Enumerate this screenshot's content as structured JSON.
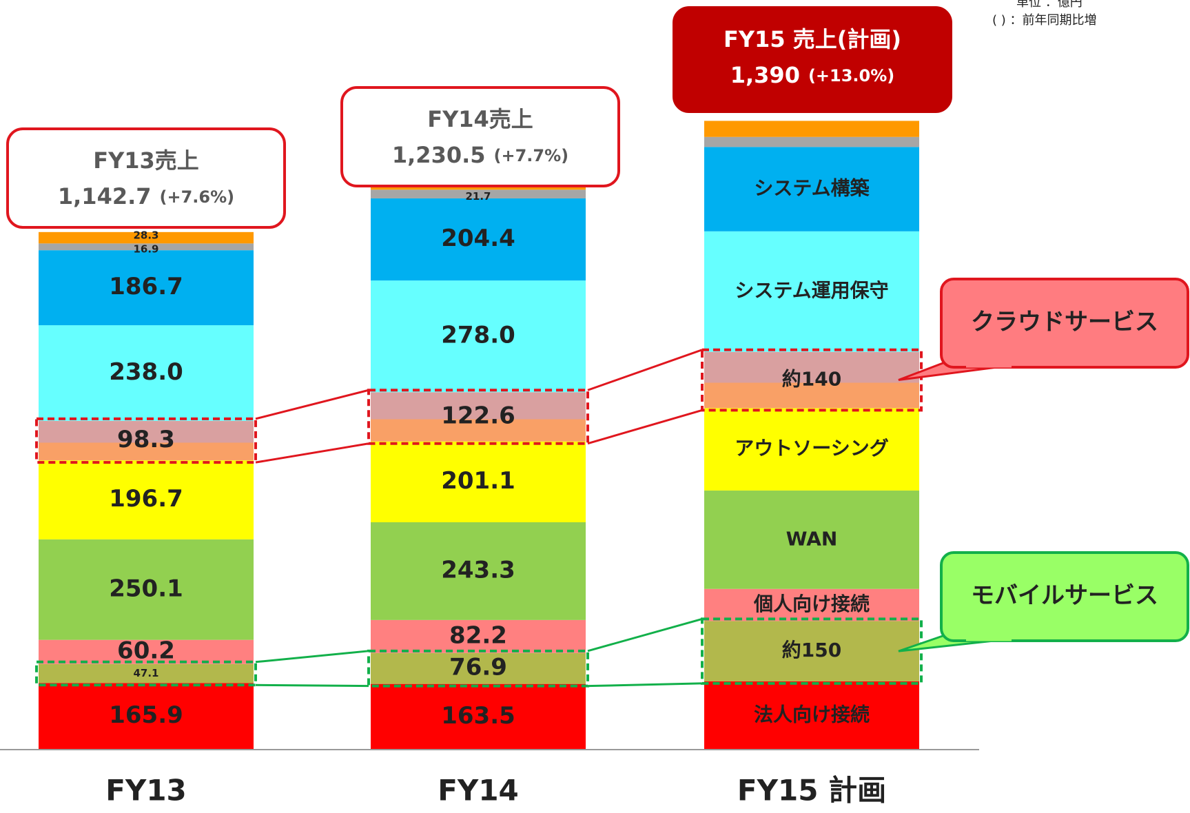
{
  "chart_data": {
    "type": "stacked-bar",
    "categories": [
      "FY13",
      "FY14",
      "FY15 計画"
    ],
    "notes": [
      "単位 ：億円",
      "( ) ：前年同期比増"
    ],
    "totals": [
      {
        "title": "FY13売上",
        "amount": "1,142.7",
        "change": "(+7.6%)"
      },
      {
        "title": "FY14売上",
        "amount": "1,230.5",
        "change": "(+7.7%)"
      },
      {
        "title": "FY15 売上(計画)",
        "amount": "1,390",
        "change": "(+13.0%)"
      }
    ],
    "ylim": [
      0,
      1600
    ],
    "series": [
      {
        "name": "法人向け接続",
        "color": "#ff0000",
        "values": [
          165.9,
          163.5,
          170
        ],
        "value_labels": [
          "165.9",
          "163.5",
          null
        ]
      },
      {
        "name": "モバイルサービス",
        "color": "#b2b84c",
        "values": [
          47.1,
          76.9,
          150
        ],
        "value_labels": [
          "47.1",
          "76.9",
          "約150"
        ]
      },
      {
        "name": "個人向け接続",
        "color": "#ff8080",
        "values": [
          60.2,
          82.2,
          80
        ],
        "value_labels": [
          "60.2",
          "82.2",
          null
        ]
      },
      {
        "name": "WAN",
        "color": "#92d050",
        "values": [
          250.1,
          243.3,
          245
        ],
        "value_labels": [
          "250.1",
          "243.3",
          null
        ]
      },
      {
        "name": "アウトソーシング",
        "color": "#ffff00",
        "values": [
          196.7,
          201.1,
          205
        ],
        "value_labels": [
          "196.7",
          "201.1",
          null
        ]
      },
      {
        "name": "クラウドサービス",
        "color": "#f9a066",
        "values": [
          98.3,
          122.6,
          140
        ],
        "value_labels": [
          "98.3",
          "122.6",
          "約140"
        ]
      },
      {
        "name": "システム運用保守",
        "color": "#66ffff",
        "values": [
          238.0,
          278.0,
          300
        ],
        "value_labels": [
          "238.0",
          "278.0",
          null
        ]
      },
      {
        "name": "システム構築",
        "color": "#00b0f0",
        "values": [
          186.7,
          204.4,
          210
        ],
        "value_labels": [
          "186.7",
          "204.4",
          null
        ]
      },
      {
        "name": null,
        "color": "#a6a6a6",
        "values": [
          16.9,
          21.7,
          25
        ],
        "value_labels": [
          "16.9",
          "21.7",
          null
        ]
      },
      {
        "name": null,
        "color": "#ff9900",
        "values": [
          28.3,
          36.4,
          40
        ],
        "value_labels": [
          "28.3",
          "36.4",
          null
        ]
      }
    ]
  }
}
